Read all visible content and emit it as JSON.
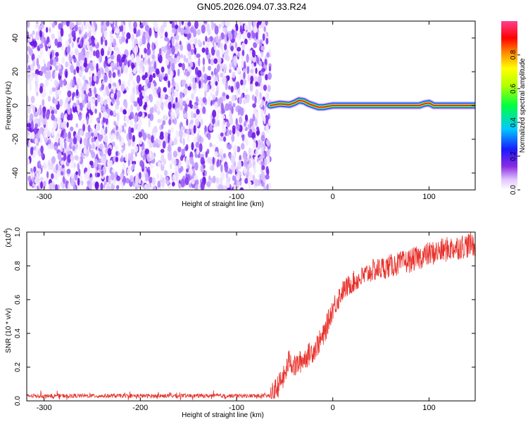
{
  "title": "GN05.2026.094.07.33.R24",
  "colors": {
    "noise": "#7a1ff0",
    "snr_line": "#e8302a",
    "axis": "#000000"
  },
  "chart_data": [
    {
      "type": "heatmap",
      "name": "spectrogram",
      "xlabel": "Height of straight line (km)",
      "ylabel": "Frequency (Hz)",
      "xlim": [
        -318,
        148
      ],
      "ylim": [
        -50,
        50
      ],
      "xticks": [
        -300,
        -200,
        -100,
        0,
        100
      ],
      "yticks": [
        -40,
        -20,
        0,
        20,
        40
      ],
      "noise_region_x": [
        -318,
        -65
      ],
      "signal_region_x": [
        -65,
        148
      ],
      "signal_track": {
        "x": [
          -65,
          -55,
          -45,
          -40,
          -35,
          -30,
          -25,
          -20,
          -15,
          -10,
          0,
          10,
          20,
          40,
          60,
          80,
          90,
          95,
          100,
          105,
          148
        ],
        "freq": [
          0,
          1,
          0.5,
          1.5,
          3,
          2.5,
          1,
          0,
          -1,
          -1,
          0,
          0,
          0,
          0,
          0,
          0,
          0,
          1,
          1.5,
          0,
          0
        ]
      },
      "colorbar": {
        "label": "Normalized spectral amplitude",
        "range": [
          0,
          1
        ],
        "ticks": [
          "0.0",
          "0.2",
          "0.4",
          "0.6",
          "0.8"
        ]
      }
    },
    {
      "type": "line",
      "name": "snr",
      "xlabel": "Height of straight line (km)",
      "ylabel": "SNR (10 * v/v)",
      "scale_label": "(x10",
      "scale_exp": "4",
      "scale_close": ")",
      "xlim": [
        -318,
        148
      ],
      "ylim": [
        0,
        1.0
      ],
      "xticks": [
        -300,
        -200,
        -100,
        0,
        100
      ],
      "yticks": [
        "0.0",
        "0.2",
        "0.4",
        "0.6",
        "0.8",
        "1.0"
      ],
      "series": [
        {
          "name": "SNR",
          "x": [
            -318,
            -65,
            -60,
            -50,
            -45,
            -40,
            -30,
            -20,
            -10,
            0,
            10,
            20,
            30,
            40,
            60,
            80,
            100,
            120,
            148
          ],
          "y": [
            0.03,
            0.03,
            0.06,
            0.15,
            0.25,
            0.2,
            0.25,
            0.3,
            0.38,
            0.55,
            0.65,
            0.7,
            0.73,
            0.77,
            0.8,
            0.83,
            0.87,
            0.9,
            0.93
          ]
        }
      ]
    }
  ]
}
